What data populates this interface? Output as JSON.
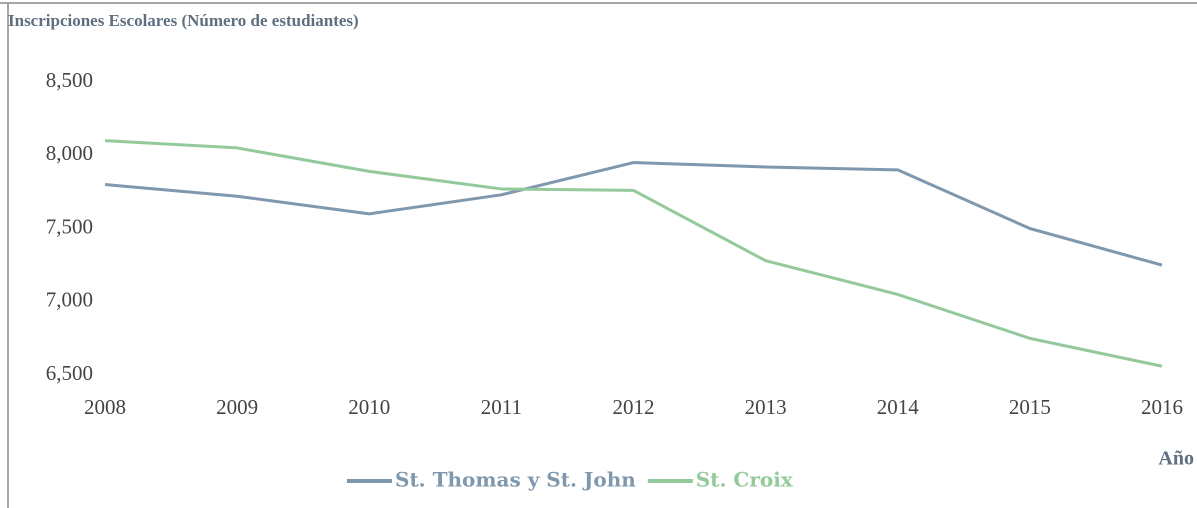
{
  "chart_data": {
    "type": "line",
    "title": "Inscripciones Escolares (Número de estudiantes)",
    "x_label": "Año",
    "x": [
      2008,
      2009,
      2010,
      2011,
      2012,
      2013,
      2014,
      2015,
      2016
    ],
    "xlim": [
      2008,
      2016
    ],
    "xticks": [
      2008,
      2009,
      2010,
      2011,
      2012,
      2013,
      2014,
      2015,
      2016
    ],
    "ylim": [
      6500,
      8500
    ],
    "yticks": [
      {
        "value": 6500,
        "label": "6,500"
      },
      {
        "value": 7000,
        "label": "7,000"
      },
      {
        "value": 7500,
        "label": "7,500"
      },
      {
        "value": 8000,
        "label": "8,000"
      },
      {
        "value": 8500,
        "label": "8,500"
      }
    ],
    "grid": false,
    "legend": "bottom",
    "series": [
      {
        "name": "St. Thomas y St. John",
        "color": "#7f98ae",
        "values": [
          7800,
          7720,
          7600,
          7730,
          7950,
          7920,
          7900,
          7500,
          7250
        ]
      },
      {
        "name": "St. Croix",
        "color": "#93c99b",
        "values": [
          8100,
          8050,
          7890,
          7770,
          7760,
          7280,
          7050,
          6750,
          6560
        ]
      }
    ]
  }
}
